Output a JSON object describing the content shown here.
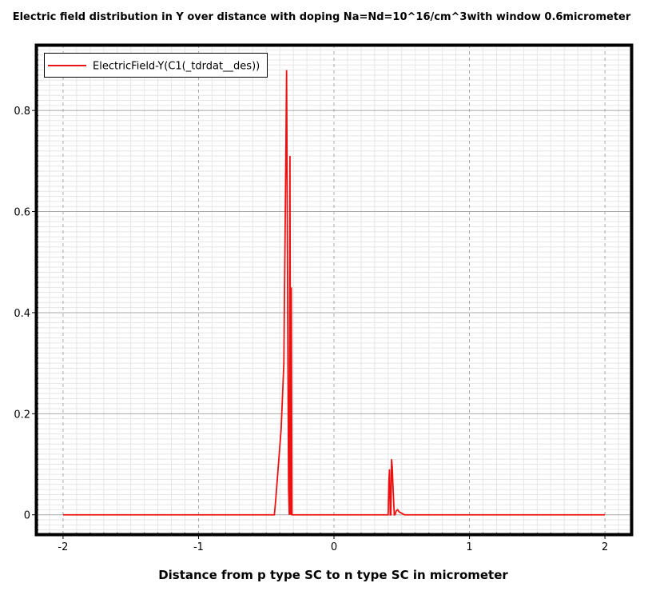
{
  "chart_data": {
    "type": "line",
    "title": "Electric field distribution in Y over distance with doping Na=Nd=10^16/cm^3with window 0.6micrometer",
    "xlabel": "Distance from p type SC to n type SC in micrometer",
    "ylabel": "",
    "xlim": [
      -2.2,
      2.2
    ],
    "ylim": [
      -0.04,
      0.93
    ],
    "xticks": [
      -2,
      -1,
      0,
      1,
      2
    ],
    "xtick_labels": [
      "-2",
      "-1",
      "0",
      "1",
      "2"
    ],
    "yticks": [
      0,
      0.2,
      0.4,
      0.6,
      0.8
    ],
    "ytick_labels": [
      "0",
      "0.2",
      "0.4",
      "0.6",
      "0.8"
    ],
    "grid": true,
    "legend_position": "top-left",
    "series": [
      {
        "name": "ElectricField-Y(C1(_tdrdat__des))",
        "color": "#ee1111",
        "x": [
          -2.0,
          -0.44,
          -0.43,
          -0.41,
          -0.39,
          -0.37,
          -0.365,
          -0.36,
          -0.355,
          -0.35,
          -0.345,
          -0.34,
          -0.335,
          -0.33,
          -0.325,
          -0.32,
          -0.315,
          -0.31,
          -0.305,
          -0.3,
          0.4,
          0.405,
          0.41,
          0.415,
          0.42,
          0.425,
          0.43,
          0.435,
          0.44,
          0.445,
          0.45,
          0.46,
          0.47,
          0.48,
          0.5,
          0.52,
          0.56,
          2.0
        ],
        "y": [
          0.0,
          0.0,
          0.03,
          0.1,
          0.17,
          0.3,
          0.45,
          0.58,
          0.72,
          0.88,
          0.62,
          0.3,
          0.05,
          0.0,
          0.71,
          0.0,
          0.45,
          0.0,
          0.0,
          0.0,
          0.0,
          0.065,
          0.09,
          0.0,
          0.0,
          0.11,
          0.095,
          0.06,
          0.03,
          0.0,
          0.0,
          0.008,
          0.01,
          0.006,
          0.003,
          0.0,
          0.0,
          0.0
        ]
      }
    ]
  }
}
